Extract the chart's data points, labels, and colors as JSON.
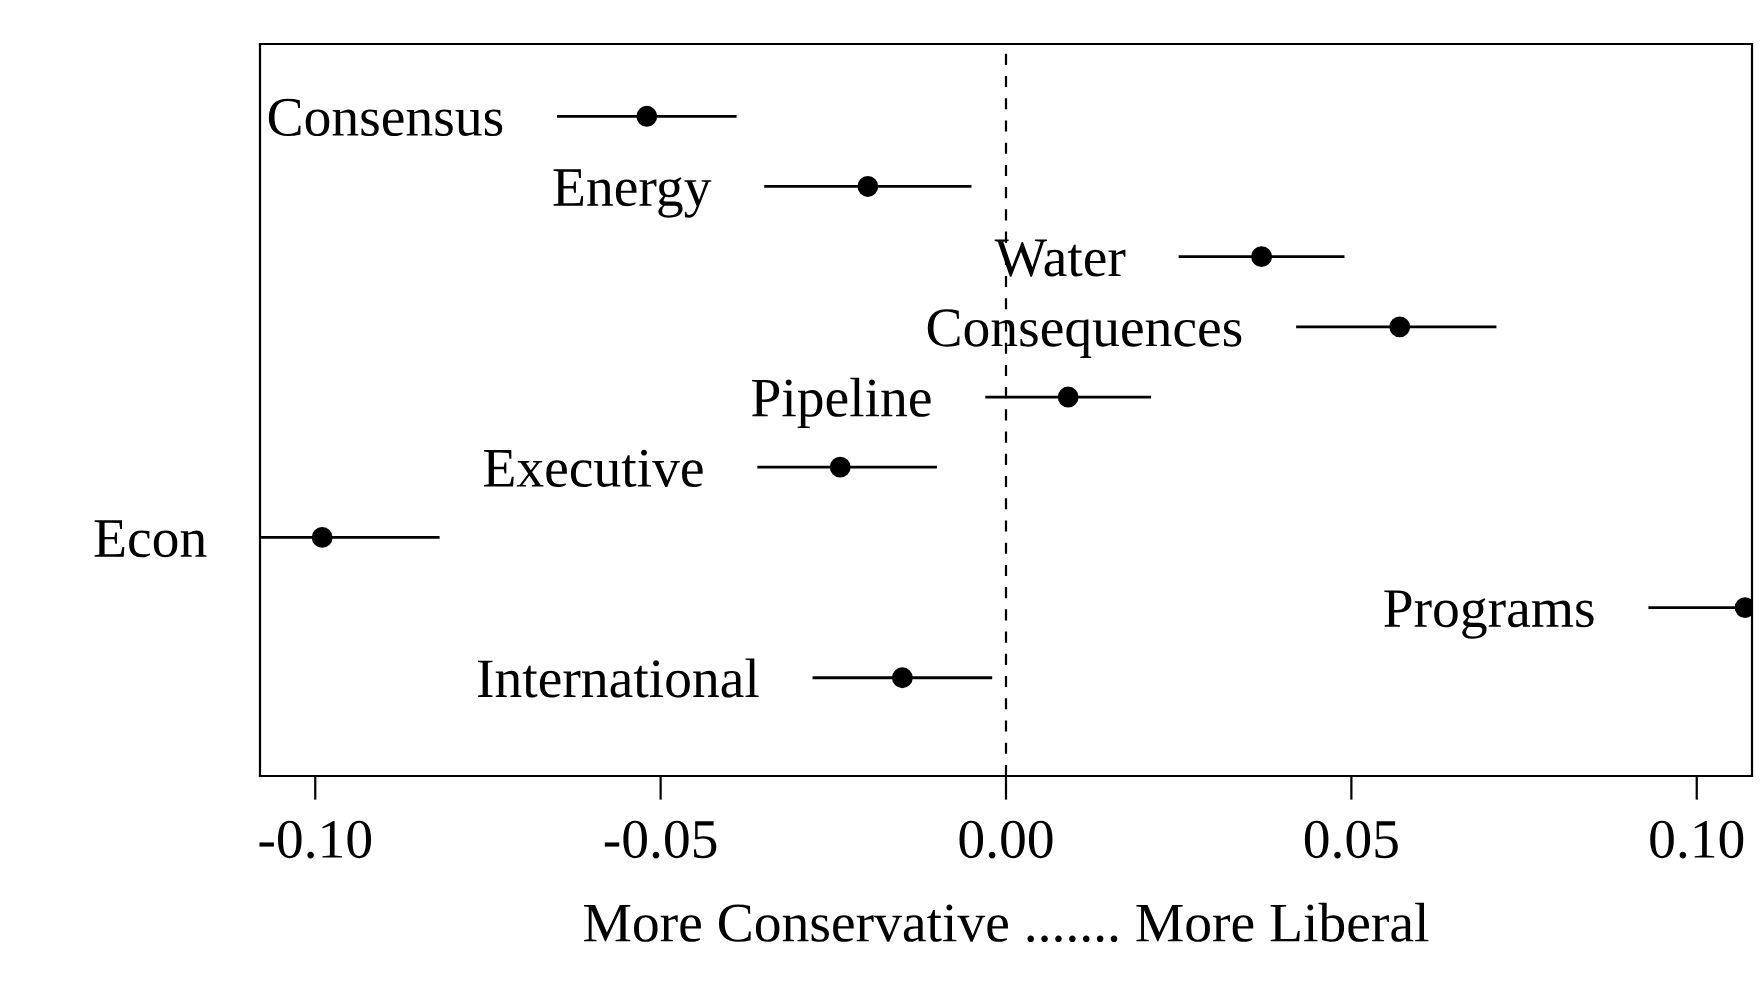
{
  "chart_data": {
    "type": "scatter",
    "orientation": "horizontal",
    "xlabel": "More Conservative ....... More Liberal",
    "categories": [
      "Consensus",
      "Energy",
      "Water",
      "Consequences",
      "Pipeline",
      "Executive",
      "Econ",
      "Programs",
      "International"
    ],
    "values": [
      -0.052,
      -0.02,
      0.037,
      0.057,
      0.009,
      -0.024,
      -0.099,
      0.107,
      -0.015
    ],
    "errors": [
      [
        -0.065,
        -0.039
      ],
      [
        -0.035,
        -0.005
      ],
      [
        0.025,
        0.049
      ],
      [
        0.042,
        0.071
      ],
      [
        -0.003,
        0.021
      ],
      [
        -0.036,
        -0.01
      ],
      [
        -0.108,
        -0.082
      ],
      [
        0.093,
        0.108
      ],
      [
        -0.028,
        -0.002
      ]
    ],
    "color": "#000000",
    "marker": "circle",
    "xlim": [
      -0.108,
      0.108
    ],
    "xticks": [
      {
        "value": -0.1,
        "label": "-0.10"
      },
      {
        "value": -0.05,
        "label": "-0.05"
      },
      {
        "value": 0,
        "label": "0.00"
      },
      {
        "value": 0.05,
        "label": "0.05"
      },
      {
        "value": 0.1,
        "label": "0.10"
      }
    ],
    "ref_lines": [
      {
        "axis": "x",
        "value": 0,
        "line_style": "dashed",
        "color": "#000000"
      }
    ],
    "tick_labels": "x"
  }
}
